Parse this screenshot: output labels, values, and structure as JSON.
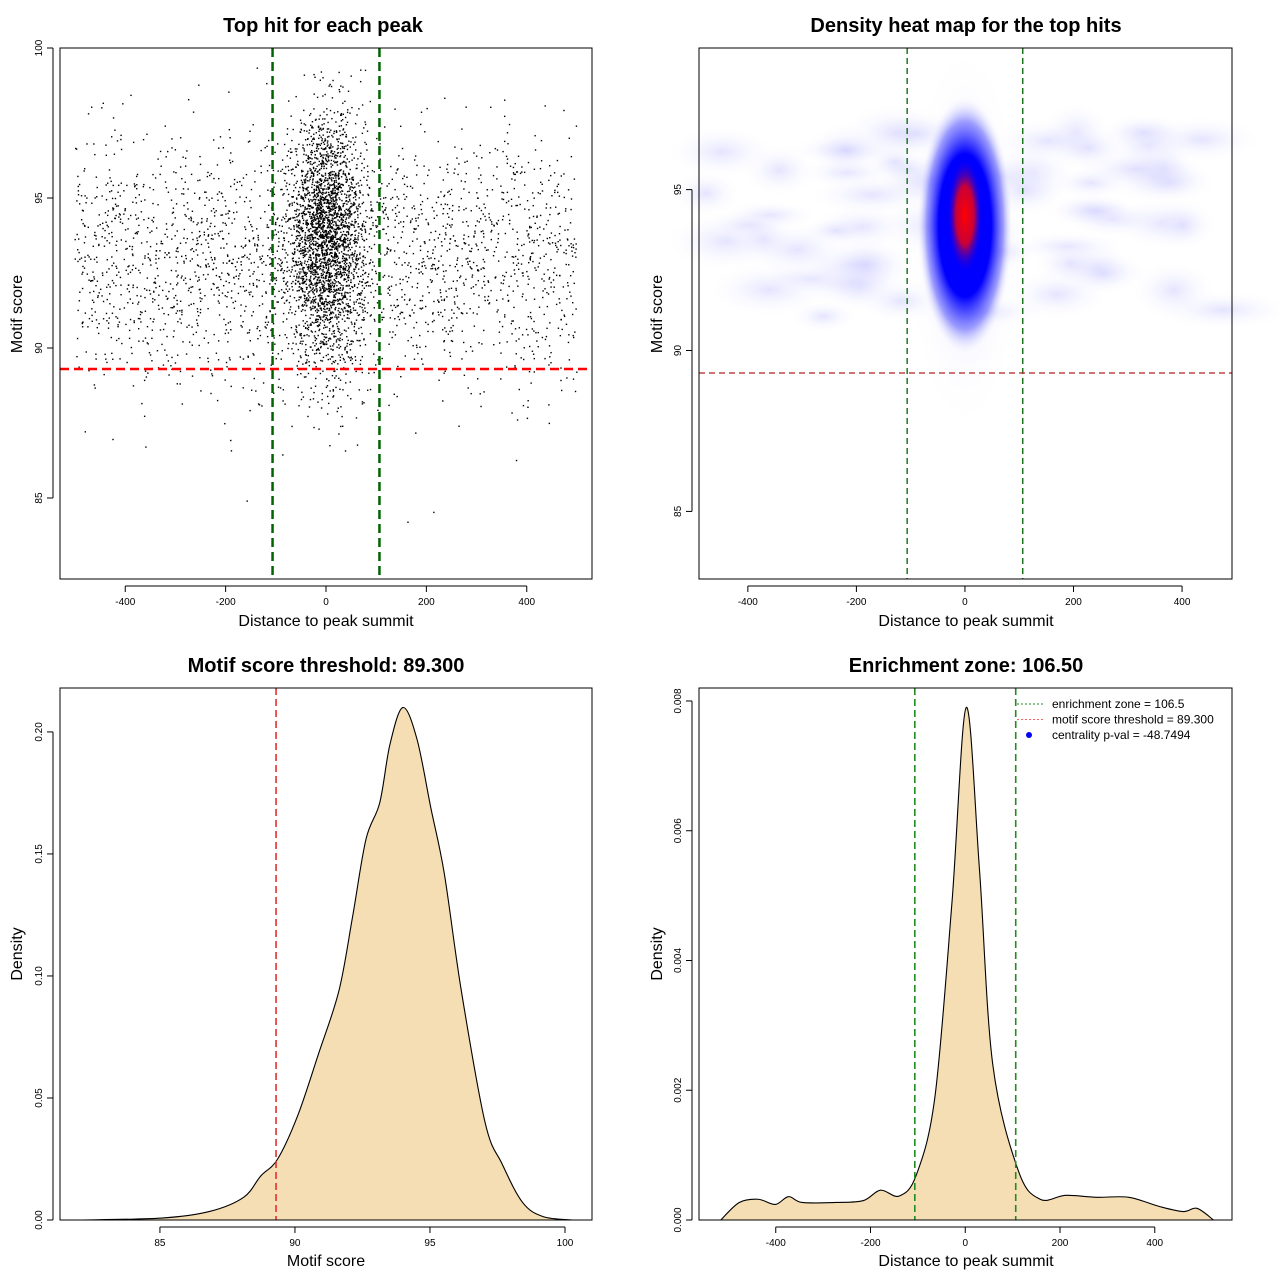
{
  "chart_data": [
    {
      "type": "scatter",
      "title": "Top hit for each peak",
      "xlabel": "Distance to peak summit",
      "ylabel": "Motif score",
      "xlim": [
        -530,
        530
      ],
      "ylim": [
        82.3,
        100
      ],
      "xticks": [
        -400,
        -200,
        0,
        200,
        400
      ],
      "yticks": [
        85,
        90,
        95,
        100
      ],
      "point_color": "#000000",
      "reference_lines": [
        {
          "orientation": "vertical",
          "value": -106.5,
          "color": "#006400",
          "style": "dashed"
        },
        {
          "orientation": "vertical",
          "value": 106.5,
          "color": "#006400",
          "style": "dashed"
        },
        {
          "orientation": "horizontal",
          "value": 89.3,
          "color": "#ff0000",
          "style": "dashed"
        }
      ]
    },
    {
      "type": "heatmap",
      "title": "Density heat map for the top hits",
      "xlabel": "Distance to peak summit",
      "ylabel": "Motif score",
      "xlim": [
        -490,
        492
      ],
      "ylim": [
        82.9,
        99.4
      ],
      "xticks": [
        -400,
        -200,
        0,
        200,
        400
      ],
      "yticks": [
        85,
        90,
        95
      ],
      "peak": {
        "x": 0,
        "y": 94.2
      },
      "colors": [
        "#ffffff",
        "#0000ff",
        "#ff0000"
      ],
      "reference_lines": [
        {
          "orientation": "vertical",
          "value": -106.5,
          "color": "#006400",
          "style": "dashed"
        },
        {
          "orientation": "vertical",
          "value": 106.5,
          "color": "#006400",
          "style": "dashed"
        },
        {
          "orientation": "horizontal",
          "value": 89.3,
          "color": "#b22222",
          "style": "dashed"
        }
      ]
    },
    {
      "type": "area",
      "title": "Motif score threshold: 89.300",
      "xlabel": "Motif score",
      "ylabel": "Density",
      "xlim": [
        81.3,
        101
      ],
      "ylim": [
        0,
        0.218
      ],
      "xticks": [
        85,
        90,
        95,
        100
      ],
      "yticks": [
        "0.00",
        "0.05",
        "0.10",
        "0.15",
        "0.20"
      ],
      "fill": "#f5deb3",
      "x": [
        82.05,
        85.07,
        86.84,
        88.1,
        88.73,
        89.36,
        90.11,
        90.87,
        91.63,
        92.13,
        92.63,
        93.14,
        93.52,
        94.0,
        94.52,
        95.03,
        95.53,
        96.16,
        97.04,
        97.67,
        98.43,
        99.19,
        100.3
      ],
      "y": [
        0,
        0.0008,
        0.0035,
        0.0093,
        0.018,
        0.025,
        0.043,
        0.068,
        0.094,
        0.124,
        0.156,
        0.171,
        0.195,
        0.21,
        0.197,
        0.169,
        0.142,
        0.094,
        0.04,
        0.023,
        0.0072,
        0.0014,
        0
      ],
      "reference_lines": [
        {
          "orientation": "vertical",
          "value": 89.3,
          "color": "#e03030",
          "style": "dashed"
        }
      ]
    },
    {
      "type": "area",
      "title": "Enrichment zone: 106.50",
      "xlabel": "Distance to peak summit",
      "ylabel": "Density",
      "xlim": [
        -562,
        563
      ],
      "ylim": [
        0,
        0.0082
      ],
      "xticks": [
        -400,
        -200,
        0,
        200,
        400
      ],
      "yticks": [
        "0.000",
        "0.002",
        "0.004",
        "0.006",
        "0.008"
      ],
      "fill": "#f5deb3",
      "x": [
        -516,
        -477,
        -437,
        -401,
        -373,
        -344,
        -272,
        -215,
        -179,
        -139,
        -103,
        -64,
        -28,
        2,
        30,
        58,
        112,
        158,
        212,
        277,
        345,
        409,
        460,
        489,
        524
      ],
      "y": [
        0,
        0.00027,
        0.00032,
        0.00024,
        0.00036,
        0.00027,
        0.00027,
        0.0003,
        0.00046,
        0.00037,
        0.0007,
        0.0019,
        0.0049,
        0.0079,
        0.0054,
        0.0024,
        0.00076,
        0.00032,
        0.00038,
        0.00035,
        0.00035,
        0.00021,
        0.00013,
        0.00018,
        0
      ],
      "reference_lines": [
        {
          "orientation": "vertical",
          "value": -106.5,
          "color": "#228b22",
          "style": "dashed"
        },
        {
          "orientation": "vertical",
          "value": 106.5,
          "color": "#228b22",
          "style": "dashed"
        }
      ],
      "legend": {
        "position": "top-right",
        "entries": [
          {
            "label": "enrichment zone = 106.5",
            "color": "#228b22",
            "symbol": "dotted-line"
          },
          {
            "label": "motif score threshold = 89.300",
            "color": "#ff6060",
            "symbol": "dotted-line"
          },
          {
            "label": "centrality p-val = -48.7494",
            "color": "#0000ff",
            "symbol": "dot"
          }
        ]
      }
    }
  ]
}
